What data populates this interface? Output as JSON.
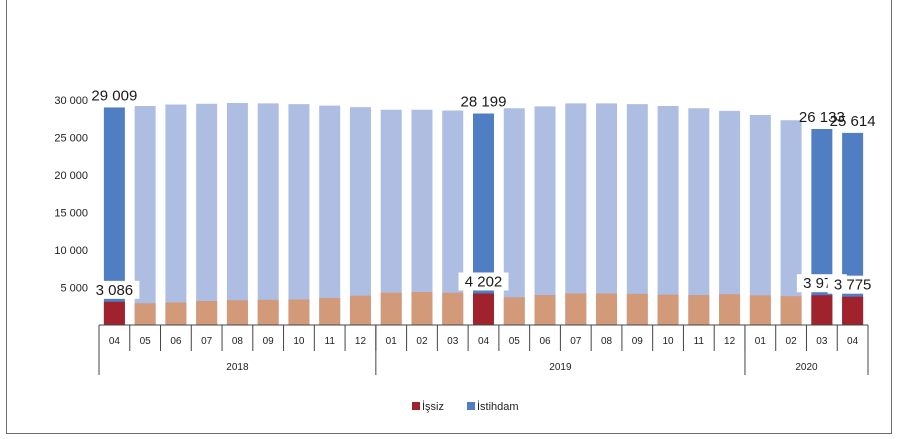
{
  "chart_data": {
    "type": "bar",
    "stacked": false,
    "ylim": [
      0,
      30000
    ],
    "yticks": [
      5000,
      10000,
      15000,
      20000,
      25000,
      30000
    ],
    "ytick_labels": [
      "5 000",
      "10 000",
      "15 000",
      "20 000",
      "25 000",
      "30 000"
    ],
    "categories": [
      "04",
      "05",
      "06",
      "07",
      "08",
      "09",
      "10",
      "11",
      "12",
      "01",
      "02",
      "03",
      "04",
      "05",
      "06",
      "07",
      "08",
      "09",
      "10",
      "11",
      "12",
      "01",
      "02",
      "03",
      "04"
    ],
    "year_groups": [
      {
        "label": "2018",
        "count": 9
      },
      {
        "label": "2019",
        "count": 12
      },
      {
        "label": "2020",
        "count": 4
      }
    ],
    "series": [
      {
        "name": "İşsiz",
        "color_highlight": "#a0222c",
        "color_normal": "#d29a78",
        "values": [
          3086,
          2900,
          3000,
          3200,
          3300,
          3350,
          3400,
          3600,
          3900,
          4300,
          4400,
          4300,
          4202,
          3700,
          4000,
          4200,
          4200,
          4150,
          4050,
          4000,
          4100,
          3950,
          3850,
          3971,
          3775
        ]
      },
      {
        "name": "İstihdam",
        "color_highlight": "#4f7ec2",
        "color_normal": "#aebde2",
        "values": [
          29009,
          29200,
          29400,
          29500,
          29600,
          29550,
          29450,
          29250,
          29050,
          28700,
          28700,
          28600,
          28199,
          28900,
          29150,
          29550,
          29550,
          29450,
          29200,
          28900,
          28550,
          28000,
          27300,
          26133,
          25614
        ]
      }
    ],
    "highlighted_indices": [
      0,
      12,
      23,
      24
    ],
    "data_labels": [
      {
        "index": 0,
        "unemployed": "3 086",
        "employed": "29 009"
      },
      {
        "index": 12,
        "unemployed": "4 202",
        "employed": "28 199"
      },
      {
        "index": 23,
        "unemployed": "3 971",
        "employed": "26 133"
      },
      {
        "index": 24,
        "unemployed": "3 775",
        "employed": "25 614"
      }
    ],
    "legend": {
      "position": "bottom",
      "items": [
        "İşsiz",
        "İstihdam"
      ]
    }
  }
}
